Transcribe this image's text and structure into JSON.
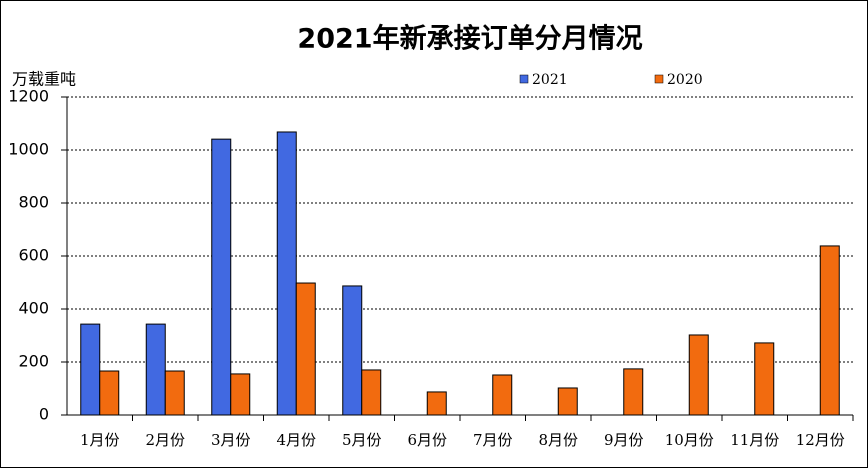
{
  "chart_data": {
    "type": "bar",
    "title": "2021年新承接订单分月情况",
    "y_label": "万载重吨",
    "categories": [
      "1月份",
      "2月份",
      "3月份",
      "4月份",
      "5月份",
      "6月份",
      "7月份",
      "8月份",
      "9月份",
      "10月份",
      "11月份",
      "12月份"
    ],
    "series": [
      {
        "name": "2021",
        "color": "#4169e1",
        "values": [
          343,
          343,
          1041,
          1068,
          487,
          null,
          null,
          null,
          null,
          null,
          null,
          null
        ]
      },
      {
        "name": "2020",
        "color": "#f26b0f",
        "values": [
          166,
          166,
          155,
          498,
          170,
          87,
          151,
          102,
          174,
          302,
          272,
          638
        ]
      }
    ],
    "ylim": [
      0,
      1200
    ],
    "yticks": [
      0,
      200,
      400,
      600,
      800,
      1000,
      1200
    ],
    "grid": true
  }
}
